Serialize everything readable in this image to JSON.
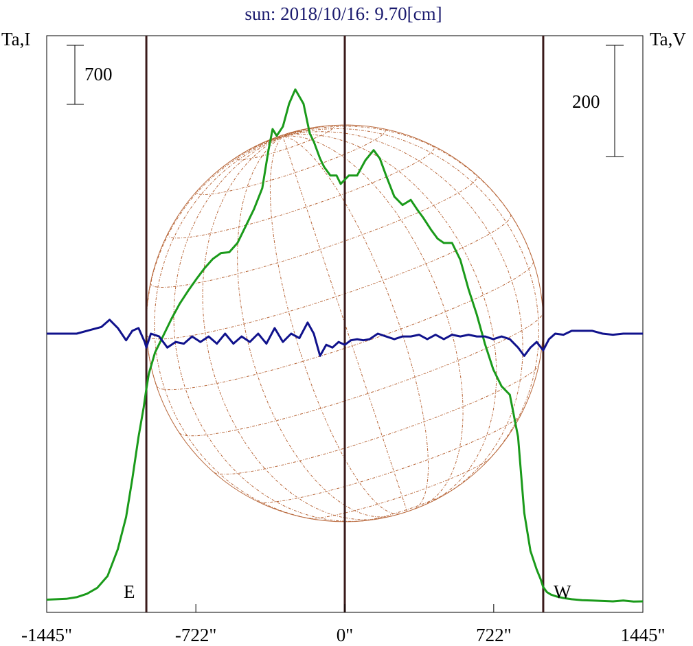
{
  "chart_data": {
    "type": "line",
    "title": "sun: 2018/10/16: 9.70[cm]",
    "left_axis_label": "Ta,I",
    "right_axis_label": "Ta,V",
    "x_ticks": [
      "-1445\"",
      "-722\"",
      "0\"",
      "722\"",
      "1445\""
    ],
    "x_tick_values": [
      -1445,
      -722,
      0,
      722,
      1445
    ],
    "xlim": [
      -1445,
      1445
    ],
    "scale_bars": [
      {
        "side": "left",
        "label": "700",
        "value": 700
      },
      {
        "side": "right",
        "label": "200",
        "value": 200
      }
    ],
    "limb_markers": [
      {
        "label": "E",
        "x": -962
      },
      {
        "label": "W",
        "x": 962
      }
    ],
    "center_marker": {
      "x": 0
    },
    "solar_radius_arcsec": 962,
    "colors": {
      "intensity": "#1a9a1a",
      "polarization": "#10128c",
      "limb_lines": "#3a1a1a",
      "disk_grid": "#b8673a",
      "title": "#1a1a6e"
    },
    "series": [
      {
        "name": "Ta,I",
        "color": "#1a9a1a",
        "units_per_scale_bar": 700,
        "x": [
          -1445,
          -1350,
          -1300,
          -1250,
          -1200,
          -1150,
          -1100,
          -1060,
          -1030,
          -1000,
          -975,
          -962,
          -950,
          -920,
          -880,
          -840,
          -800,
          -760,
          -720,
          -680,
          -640,
          -600,
          -560,
          -520,
          -480,
          -440,
          -400,
          -370,
          -350,
          -330,
          -300,
          -270,
          -240,
          -200,
          -170,
          -150,
          -120,
          -100,
          -70,
          -40,
          -20,
          0,
          20,
          60,
          100,
          140,
          170,
          200,
          240,
          280,
          320,
          350,
          380,
          420,
          450,
          480,
          520,
          560,
          600,
          640,
          680,
          720,
          760,
          800,
          840,
          870,
          900,
          930,
          950,
          962,
          980,
          1000,
          1030,
          1060,
          1100,
          1150,
          1200,
          1250,
          1300,
          1350,
          1400,
          1445
        ],
        "y": [
          20,
          30,
          50,
          90,
          160,
          300,
          620,
          1000,
          1450,
          1950,
          2300,
          2520,
          2700,
          2950,
          3150,
          3350,
          3530,
          3680,
          3820,
          3950,
          4060,
          4130,
          4140,
          4250,
          4450,
          4650,
          4900,
          5350,
          5600,
          5520,
          5630,
          5900,
          6070,
          5900,
          5550,
          5450,
          5250,
          5150,
          5050,
          5050,
          4950,
          5000,
          5050,
          5050,
          5230,
          5350,
          5250,
          5050,
          4800,
          4700,
          4760,
          4650,
          4550,
          4400,
          4300,
          4250,
          4250,
          4050,
          3700,
          3400,
          3050,
          2750,
          2550,
          2450,
          1950,
          1050,
          600,
          380,
          260,
          170,
          110,
          80,
          55,
          40,
          25,
          15,
          10,
          5,
          0,
          10,
          -2,
          0
        ]
      },
      {
        "name": "Ta,V",
        "color": "#10128c",
        "units_per_scale_bar": 200,
        "x": [
          -1445,
          -1300,
          -1180,
          -1140,
          -1100,
          -1060,
          -1030,
          -1000,
          -970,
          -962,
          -940,
          -900,
          -860,
          -820,
          -780,
          -740,
          -700,
          -660,
          -620,
          -580,
          -540,
          -500,
          -460,
          -420,
          -380,
          -340,
          -300,
          -260,
          -220,
          -180,
          -150,
          -120,
          -90,
          -60,
          -30,
          0,
          30,
          60,
          90,
          120,
          160,
          200,
          240,
          280,
          320,
          360,
          400,
          440,
          480,
          520,
          560,
          600,
          640,
          680,
          720,
          760,
          800,
          840,
          870,
          900,
          930,
          962,
          990,
          1020,
          1060,
          1100,
          1150,
          1200,
          1250,
          1300,
          1350,
          1400,
          1445
        ],
        "y": [
          0,
          0,
          12,
          25,
          10,
          -12,
          5,
          10,
          -15,
          -25,
          0,
          -5,
          -25,
          -15,
          -18,
          -5,
          -15,
          -5,
          -18,
          0,
          -18,
          -5,
          -15,
          0,
          -18,
          10,
          -15,
          0,
          -8,
          20,
          0,
          -40,
          -20,
          -25,
          -15,
          -20,
          -12,
          -10,
          -12,
          -10,
          0,
          -5,
          -10,
          -5,
          -5,
          -2,
          -10,
          -2,
          -10,
          -2,
          -5,
          -2,
          -5,
          -5,
          -10,
          -5,
          -10,
          -25,
          -40,
          -25,
          -15,
          -30,
          -10,
          0,
          -2,
          5,
          5,
          5,
          0,
          -2,
          0,
          0,
          0
        ]
      }
    ]
  }
}
